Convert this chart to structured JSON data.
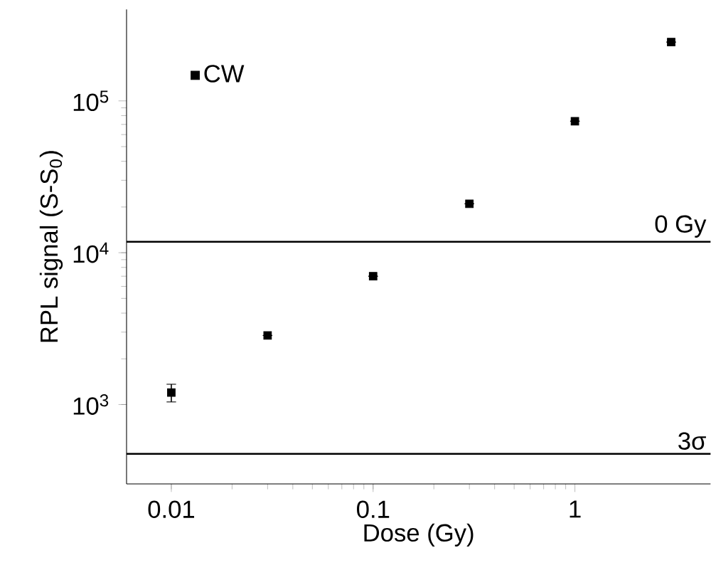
{
  "chart_data": {
    "type": "scatter",
    "xlabel": "Dose (Gy)",
    "ylabel": "RPL signal (S-S$_{0}$)",
    "log": "xy",
    "xlim": [
      0.006,
      4.7
    ],
    "ylim": [
      300,
      400000
    ],
    "xticks": [
      0.01,
      0.1,
      1
    ],
    "yticks": [
      {
        "value": 1000,
        "label": "10$^{3}$"
      },
      {
        "value": 10000,
        "label": "10$^{4}$"
      },
      {
        "value": 100000,
        "label": "10$^{5}$"
      }
    ],
    "x": [
      0.01,
      0.03,
      0.1,
      0.3,
      1,
      3
    ],
    "series": [
      {
        "name": "CW",
        "color": "#000000",
        "values": [
          1200,
          2850,
          7000,
          21000,
          73500,
          244000
        ],
        "errors": [
          160,
          null,
          null,
          null,
          null,
          null
        ]
      }
    ],
    "marker": "square",
    "legend": "top left",
    "grid": false,
    "ref_lines": [
      {
        "axis": "y",
        "value": 11800,
        "label": "0 Gy",
        "color": "#000000"
      },
      {
        "axis": "y",
        "value": 473,
        "label": "3σ",
        "color": "#000000"
      }
    ]
  }
}
